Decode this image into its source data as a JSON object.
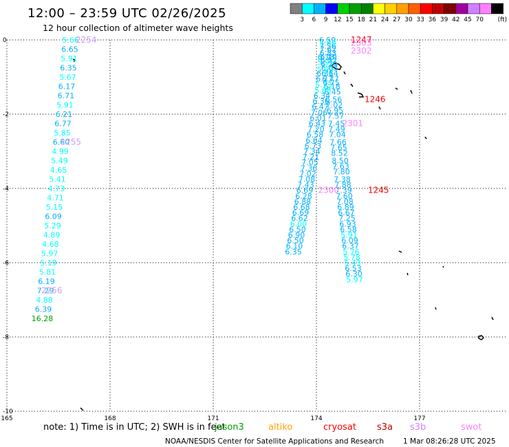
{
  "header": {
    "title": "12:00 – 23:59 UTC 02/26/2025",
    "subtitle": "12 hour collection of altimeter wave heights"
  },
  "colorbar": {
    "colors": [
      "#808080",
      "#00ffff",
      "#00b0ff",
      "#0000ff",
      "#00d000",
      "#00a000",
      "#008000",
      "#ffff00",
      "#ffd000",
      "#ffa000",
      "#ff6000",
      "#ff0000",
      "#c00000",
      "#800000",
      "#a000a0",
      "#d080ff",
      "#ff80ff",
      "#000000"
    ],
    "tick_labels": [
      "3",
      "6",
      "9",
      "12",
      "15",
      "18",
      "21",
      "24",
      "27",
      "30",
      "33",
      "36",
      "39",
      "42",
      "45",
      "70"
    ],
    "unit": "(ft)"
  },
  "chart_data": {
    "type": "scatter",
    "title": "12:00 – 23:59 UTC 02/26/2025",
    "subtitle": "12 hour collection of altimeter wave heights",
    "xlim": [
      165,
      179.5
    ],
    "ylim": [
      -10,
      0
    ],
    "x_ticks": [
      "165",
      "168",
      "171",
      "174",
      "177"
    ],
    "y_ticks": [
      "0",
      "-2",
      "-4",
      "-6",
      "-8",
      "-10"
    ],
    "color_scale": [
      {
        "max": 3,
        "color": "#808080"
      },
      {
        "max": 6,
        "color": "#00ffff"
      },
      {
        "max": 9,
        "color": "#00b0ff"
      },
      {
        "max": 12,
        "color": "#0000ff"
      },
      {
        "max": 15,
        "color": "#00d000"
      },
      {
        "max": 18,
        "color": "#00a000"
      },
      {
        "max": 21,
        "color": "#008000"
      },
      {
        "max": 70,
        "color": "#000000"
      }
    ],
    "series": [
      {
        "name": "pass-2254",
        "points": [
          {
            "x": 166.85,
            "y": 0,
            "v": "5.66"
          },
          {
            "x": 166.83,
            "y": -0.25,
            "v": "6.65"
          },
          {
            "x": 166.81,
            "y": -0.5,
            "v": "5.91"
          },
          {
            "x": 166.79,
            "y": -0.75,
            "v": "6.35"
          },
          {
            "x": 166.77,
            "y": -1.0,
            "v": "5.67"
          },
          {
            "x": 166.74,
            "y": -1.25,
            "v": "6.17"
          },
          {
            "x": 166.72,
            "y": -1.5,
            "v": "6.71"
          },
          {
            "x": 166.69,
            "y": -1.75,
            "v": "5.91"
          },
          {
            "x": 166.66,
            "y": -2.0,
            "v": "6.21"
          },
          {
            "x": 166.63,
            "y": -2.25,
            "v": "6.77"
          },
          {
            "x": 166.61,
            "y": -2.5,
            "v": "5.85"
          },
          {
            "x": 166.58,
            "y": -2.75,
            "v": "6.60"
          },
          {
            "x": 166.55,
            "y": -3.0,
            "v": "4.99"
          },
          {
            "x": 166.53,
            "y": -3.25,
            "v": "5.49"
          },
          {
            "x": 166.5,
            "y": -3.5,
            "v": "4.65"
          },
          {
            "x": 166.47,
            "y": -3.75,
            "v": "5.41"
          },
          {
            "x": 166.44,
            "y": -4.0,
            "v": "4.73"
          },
          {
            "x": 166.41,
            "y": -4.25,
            "v": "4.71"
          },
          {
            "x": 166.38,
            "y": -4.5,
            "v": "5.15"
          },
          {
            "x": 166.35,
            "y": -4.75,
            "v": "6.09"
          },
          {
            "x": 166.33,
            "y": -5.0,
            "v": "5.29"
          },
          {
            "x": 166.3,
            "y": -5.25,
            "v": "4.89"
          },
          {
            "x": 166.27,
            "y": -5.5,
            "v": "4.68"
          },
          {
            "x": 166.24,
            "y": -5.75,
            "v": "5.97"
          },
          {
            "x": 166.21,
            "y": -6.0,
            "v": "5.19"
          },
          {
            "x": 166.18,
            "y": -6.25,
            "v": "5.81"
          },
          {
            "x": 166.15,
            "y": -6.5,
            "v": "6.19"
          },
          {
            "x": 166.12,
            "y": -6.75,
            "v": "7.29"
          },
          {
            "x": 166.09,
            "y": -7.0,
            "v": "4.88"
          },
          {
            "x": 166.06,
            "y": -7.25,
            "v": "6.39"
          },
          {
            "x": 166.03,
            "y": -7.5,
            "v": "16.28"
          }
        ]
      },
      {
        "name": "pass-2302",
        "points": [
          {
            "x": 174.32,
            "y": 0,
            "v": "6.59"
          },
          {
            "x": 174.33,
            "y": -0.08,
            "v": "5.80"
          },
          {
            "x": 174.33,
            "y": -0.17,
            "v": "7.56"
          },
          {
            "x": 174.34,
            "y": -0.25,
            "v": "7.62"
          },
          {
            "x": 174.34,
            "y": -0.35,
            "v": "6.83"
          },
          {
            "x": 174.35,
            "y": -0.45,
            "v": "6.10"
          },
          {
            "x": 174.36,
            "y": -0.55,
            "v": "6.52"
          },
          {
            "x": 174.37,
            "y": -0.65,
            "v": "6.29"
          },
          {
            "x": 174.38,
            "y": -0.75,
            "v": "6.03"
          },
          {
            "x": 174.39,
            "y": -0.9,
            "v": "6.14"
          },
          {
            "x": 174.41,
            "y": -1.05,
            "v": "6.77"
          },
          {
            "x": 174.43,
            "y": -1.15,
            "v": "6.75"
          },
          {
            "x": 174.45,
            "y": -1.25,
            "v": "6.18"
          },
          {
            "x": 174.47,
            "y": -1.4,
            "v": "6.45"
          },
          {
            "x": 174.5,
            "y": -1.6,
            "v": "6.56"
          },
          {
            "x": 174.52,
            "y": -1.75,
            "v": "7.02"
          },
          {
            "x": 174.54,
            "y": -1.9,
            "v": "6.95"
          },
          {
            "x": 174.56,
            "y": -2.05,
            "v": "7.57"
          },
          {
            "x": 174.58,
            "y": -2.25,
            "v": "7.45"
          },
          {
            "x": 174.59,
            "y": -2.4,
            "v": "7.49"
          },
          {
            "x": 174.61,
            "y": -2.55,
            "v": "7.04"
          },
          {
            "x": 174.63,
            "y": -2.75,
            "v": "7.66"
          },
          {
            "x": 174.65,
            "y": -2.9,
            "v": "7.65"
          },
          {
            "x": 174.67,
            "y": -3.05,
            "v": "8.52"
          },
          {
            "x": 174.69,
            "y": -3.25,
            "v": "8.50"
          },
          {
            "x": 174.71,
            "y": -3.4,
            "v": "7.63"
          },
          {
            "x": 174.73,
            "y": -3.55,
            "v": "7.80"
          },
          {
            "x": 174.75,
            "y": -3.75,
            "v": "7.38"
          },
          {
            "x": 174.77,
            "y": -3.9,
            "v": "7.88"
          },
          {
            "x": 174.79,
            "y": -4.05,
            "v": "7.39"
          },
          {
            "x": 174.81,
            "y": -4.2,
            "v": "7.60"
          },
          {
            "x": 174.83,
            "y": -4.35,
            "v": "7.08"
          },
          {
            "x": 174.85,
            "y": -4.5,
            "v": "6.89"
          },
          {
            "x": 174.87,
            "y": -4.65,
            "v": "6.67"
          },
          {
            "x": 174.89,
            "y": -4.8,
            "v": "7.25"
          },
          {
            "x": 174.91,
            "y": -4.95,
            "v": "6.93"
          },
          {
            "x": 174.93,
            "y": -5.1,
            "v": "6.58"
          },
          {
            "x": 174.95,
            "y": -5.25,
            "v": "5.91"
          },
          {
            "x": 174.97,
            "y": -5.4,
            "v": "6.09"
          },
          {
            "x": 174.99,
            "y": -5.55,
            "v": "6.37"
          },
          {
            "x": 175.01,
            "y": -5.7,
            "v": "5.76"
          },
          {
            "x": 175.03,
            "y": -5.85,
            "v": "5.78"
          },
          {
            "x": 175.05,
            "y": -6.0,
            "v": "5.43"
          },
          {
            "x": 175.07,
            "y": -6.15,
            "v": "6.53"
          },
          {
            "x": 175.09,
            "y": -6.3,
            "v": "6.30"
          },
          {
            "x": 175.11,
            "y": -6.45,
            "v": "5.97"
          }
        ]
      },
      {
        "name": "pass-2300",
        "points": [
          {
            "x": 174.28,
            "y": -0.45,
            "v": "6.18"
          },
          {
            "x": 174.27,
            "y": -0.6,
            "v": "5.95"
          },
          {
            "x": 174.26,
            "y": -0.8,
            "v": "5.99"
          },
          {
            "x": 174.25,
            "y": -0.9,
            "v": "6.36"
          },
          {
            "x": 174.23,
            "y": -1.05,
            "v": "6.27"
          },
          {
            "x": 174.21,
            "y": -1.2,
            "v": "5.73"
          },
          {
            "x": 174.19,
            "y": -1.35,
            "v": "5.88"
          },
          {
            "x": 174.16,
            "y": -1.5,
            "v": "6.34"
          },
          {
            "x": 174.13,
            "y": -1.65,
            "v": "6.36"
          },
          {
            "x": 174.11,
            "y": -1.8,
            "v": "6.47"
          },
          {
            "x": 174.08,
            "y": -1.95,
            "v": "7.06"
          },
          {
            "x": 174.05,
            "y": -2.1,
            "v": "6.01"
          },
          {
            "x": 174.02,
            "y": -2.25,
            "v": "6.43"
          },
          {
            "x": 173.99,
            "y": -2.4,
            "v": "7.20"
          },
          {
            "x": 173.96,
            "y": -2.55,
            "v": "6.58"
          },
          {
            "x": 173.93,
            "y": -2.7,
            "v": "6.64"
          },
          {
            "x": 173.9,
            "y": -2.85,
            "v": "6.73"
          },
          {
            "x": 173.87,
            "y": -3.0,
            "v": "7.34"
          },
          {
            "x": 173.84,
            "y": -3.15,
            "v": "7.21"
          },
          {
            "x": 173.81,
            "y": -3.3,
            "v": "7.05"
          },
          {
            "x": 173.78,
            "y": -3.45,
            "v": "7.36"
          },
          {
            "x": 173.75,
            "y": -3.6,
            "v": "7.02"
          },
          {
            "x": 173.72,
            "y": -3.75,
            "v": "7.08"
          },
          {
            "x": 173.69,
            "y": -3.9,
            "v": "7.43"
          },
          {
            "x": 173.66,
            "y": -4.05,
            "v": "6.69"
          },
          {
            "x": 173.63,
            "y": -4.2,
            "v": "6.28"
          },
          {
            "x": 173.6,
            "y": -4.35,
            "v": "6.88"
          },
          {
            "x": 173.57,
            "y": -4.5,
            "v": "6.68"
          },
          {
            "x": 173.54,
            "y": -4.65,
            "v": "6.69"
          },
          {
            "x": 173.51,
            "y": -4.8,
            "v": "6.62"
          },
          {
            "x": 173.48,
            "y": -4.95,
            "v": "6.00"
          },
          {
            "x": 173.45,
            "y": -5.1,
            "v": "6.50"
          },
          {
            "x": 173.42,
            "y": -5.25,
            "v": "6.90"
          },
          {
            "x": 173.39,
            "y": -5.4,
            "v": "6.50"
          },
          {
            "x": 173.36,
            "y": -5.55,
            "v": "6.10"
          },
          {
            "x": 173.33,
            "y": -5.7,
            "v": "6.35"
          }
        ]
      }
    ],
    "pass_labels": [
      {
        "text": "2254",
        "x": 167.0,
        "y": 0,
        "color": "#c8a0f0"
      },
      {
        "text": "2255",
        "x": 166.55,
        "y": -2.75,
        "color": "#c8a0f0"
      },
      {
        "text": "2256",
        "x": 166.0,
        "y": -6.75,
        "color": "#c8a0f0"
      },
      {
        "text": "1247",
        "x": 175.0,
        "y": 0,
        "color": "#ff0000"
      },
      {
        "text": "2303",
        "x": 175.0,
        "y": -0.08,
        "color": "#ff80ff"
      },
      {
        "text": "2302",
        "x": 175.0,
        "y": -0.3,
        "color": "#ff80ff"
      },
      {
        "text": "1246",
        "x": 175.4,
        "y": -1.6,
        "color": "#ff0000"
      },
      {
        "text": "2301",
        "x": 174.75,
        "y": -2.25,
        "color": "#ff80ff"
      },
      {
        "text": "1245",
        "x": 175.5,
        "y": -4.05,
        "color": "#ff0000"
      },
      {
        "text": "2300",
        "x": 174.05,
        "y": -4.05,
        "color": "#ff80ff"
      }
    ]
  },
  "footer": {
    "note": "note:  1) Time is in UTC; 2) SWH is in feet",
    "missions": [
      {
        "label": "jason3",
        "color": "#00a000"
      },
      {
        "label": "altiko",
        "color": "#ffa000"
      },
      {
        "label": "cryosat",
        "color": "#ff0000"
      },
      {
        "label": "s3a",
        "color": "#c00000"
      },
      {
        "label": "s3b",
        "color": "#d080ff"
      },
      {
        "label": "swot",
        "color": "#ff80ff"
      }
    ],
    "credit": "NOAA/NESDIS Center for Satellite Applications and Research",
    "timestamp": "1 Mar 08:26:28 UTC 2025"
  }
}
